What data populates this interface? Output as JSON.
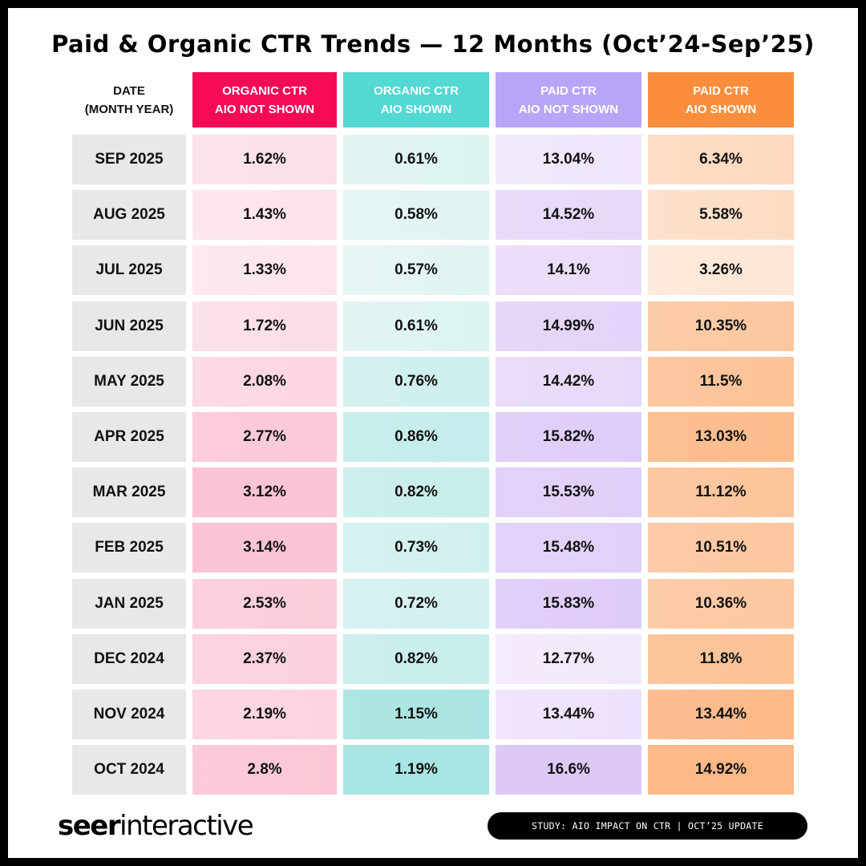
{
  "title": "Paid & Organic CTR Trends — 12 Months (Oct’24-Sep’25)",
  "chart_data": {
    "type": "table",
    "columns": [
      {
        "line1": "DATE",
        "line2": "(MONTH YEAR)"
      },
      {
        "line1": "ORGANIC CTR",
        "line2": "AIO NOT SHOWN",
        "color": "#F50A55",
        "light": "#FDE9EF",
        "dark": "#FBC4D4"
      },
      {
        "line1": "ORGANIC CTR",
        "line2": "AIO SHOWN",
        "color": "#53D8D4",
        "light": "#E6F6F5",
        "dark": "#A9E5E2"
      },
      {
        "line1": "PAID CTR",
        "line2": "AIO NOT SHOWN",
        "color": "#B8A5F7",
        "light": "#F4EBFC",
        "dark": "#DCC9F7"
      },
      {
        "line1": "PAID CTR",
        "line2": "AIO SHOWN",
        "color": "#FB8E3C",
        "light": "#FDEBDD",
        "dark": "#FCB886"
      }
    ],
    "rows": [
      {
        "date": "SEP 2025",
        "values": [
          "1.62%",
          "0.61%",
          "13.04%",
          "6.34%"
        ]
      },
      {
        "date": "AUG 2025",
        "values": [
          "1.43%",
          "0.58%",
          "14.52%",
          "5.58%"
        ]
      },
      {
        "date": "JUL 2025",
        "values": [
          "1.33%",
          "0.57%",
          "14.1%",
          "3.26%"
        ]
      },
      {
        "date": "JUN 2025",
        "values": [
          "1.72%",
          "0.61%",
          "14.99%",
          "10.35%"
        ]
      },
      {
        "date": "MAY 2025",
        "values": [
          "2.08%",
          "0.76%",
          "14.42%",
          "11.5%"
        ]
      },
      {
        "date": "APR 2025",
        "values": [
          "2.77%",
          "0.86%",
          "15.82%",
          "13.03%"
        ]
      },
      {
        "date": "MAR 2025",
        "values": [
          "3.12%",
          "0.82%",
          "15.53%",
          "11.12%"
        ]
      },
      {
        "date": "FEB 2025",
        "values": [
          "3.14%",
          "0.73%",
          "15.48%",
          "10.51%"
        ]
      },
      {
        "date": "JAN 2025",
        "values": [
          "2.53%",
          "0.72%",
          "15.83%",
          "10.36%"
        ]
      },
      {
        "date": "DEC 2024",
        "values": [
          "2.37%",
          "0.82%",
          "12.77%",
          "11.8%"
        ]
      },
      {
        "date": "NOV 2024",
        "values": [
          "2.19%",
          "1.15%",
          "13.44%",
          "13.44%"
        ]
      },
      {
        "date": "OCT 2024",
        "values": [
          "2.8%",
          "1.19%",
          "16.6%",
          "14.92%"
        ]
      }
    ],
    "date_cell_color": "#E8E8EB"
  },
  "footer": {
    "logo_bold": "seer",
    "logo_light": "interactive",
    "badge": "STUDY: AIO IMPACT ON CTR | OCT’25 UPDATE"
  }
}
